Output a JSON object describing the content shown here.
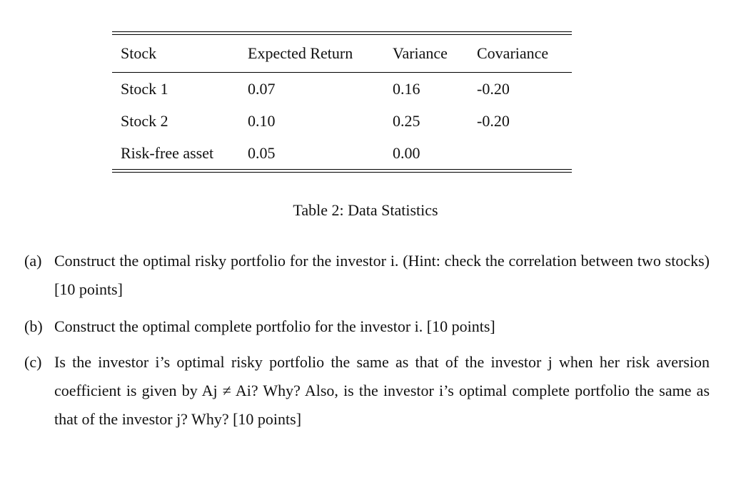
{
  "table": {
    "headers": [
      "Stock",
      "Expected Return",
      "Variance",
      "Covariance"
    ],
    "rows": [
      [
        "Stock 1",
        "0.07",
        "0.16",
        "-0.20"
      ],
      [
        "Stock 2",
        "0.10",
        "0.25",
        "-0.20"
      ],
      [
        "Risk-free asset",
        "0.05",
        "0.00",
        ""
      ]
    ]
  },
  "caption": "Table 2: Data Statistics",
  "questions": [
    {
      "label": "(a)",
      "text": "Construct the optimal risky portfolio for the investor i. (Hint: check the correlation between two stocks) [10 points]"
    },
    {
      "label": "(b)",
      "text": "Construct the optimal complete portfolio for the investor i. [10 points]"
    },
    {
      "label": "(c)",
      "text": "Is the investor i’s optimal risky portfolio the same as that of the investor j when her risk aversion coefficient is given by Aj ≠ Ai? Why? Also, is the investor i’s optimal complete portfolio the same as that of the investor j? Why? [10 points]"
    }
  ]
}
